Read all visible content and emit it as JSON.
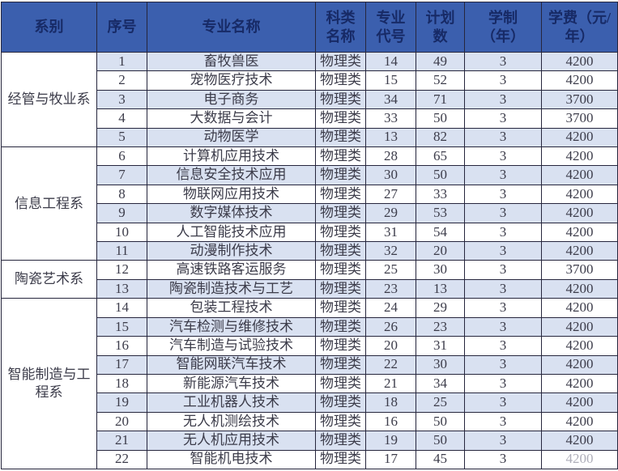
{
  "table": {
    "headers": [
      "系别",
      "序号",
      "专业名称",
      "科类\n名称",
      "专业\n代号",
      "计划\n数",
      "学制\n（年）",
      "学费（元/\n年）"
    ],
    "departments": [
      {
        "name": "经管与牧业系",
        "rowspan": 5
      },
      {
        "name": "信息工程系",
        "rowspan": 6
      },
      {
        "name": "陶瓷艺术系",
        "rowspan": 2
      },
      {
        "name": "智能制造与工程系",
        "rowspan": 9
      }
    ],
    "rows": [
      {
        "no": "1",
        "major": "畜牧兽医",
        "category": "物理类",
        "code": "14",
        "plan": "49",
        "years": "3",
        "fee": "4200"
      },
      {
        "no": "2",
        "major": "宠物医疗技术",
        "category": "物理类",
        "code": "15",
        "plan": "52",
        "years": "3",
        "fee": "4200"
      },
      {
        "no": "3",
        "major": "电子商务",
        "category": "物理类",
        "code": "34",
        "plan": "71",
        "years": "3",
        "fee": "3700"
      },
      {
        "no": "4",
        "major": "大数据与会计",
        "category": "物理类",
        "code": "33",
        "plan": "50",
        "years": "3",
        "fee": "3700"
      },
      {
        "no": "5",
        "major": "动物医学",
        "category": "物理类",
        "code": "13",
        "plan": "82",
        "years": "3",
        "fee": "4200"
      },
      {
        "no": "6",
        "major": "计算机应用技术",
        "category": "物理类",
        "code": "28",
        "plan": "65",
        "years": "3",
        "fee": "4200"
      },
      {
        "no": "7",
        "major": "信息安全技术应用",
        "category": "物理类",
        "code": "30",
        "plan": "50",
        "years": "3",
        "fee": "4200"
      },
      {
        "no": "8",
        "major": "物联网应用技术",
        "category": "物理类",
        "code": "27",
        "plan": "33",
        "years": "3",
        "fee": "4200"
      },
      {
        "no": "9",
        "major": "数字媒体技术",
        "category": "物理类",
        "code": "29",
        "plan": "53",
        "years": "3",
        "fee": "4200"
      },
      {
        "no": "10",
        "major": "人工智能技术应用",
        "category": "物理类",
        "code": "31",
        "plan": "54",
        "years": "3",
        "fee": "4200"
      },
      {
        "no": "11",
        "major": "动漫制作技术",
        "category": "物理类",
        "code": "32",
        "plan": "20",
        "years": "3",
        "fee": "4200"
      },
      {
        "no": "12",
        "major": "高速铁路客运服务",
        "category": "物理类",
        "code": "25",
        "plan": "30",
        "years": "3",
        "fee": "3700"
      },
      {
        "no": "13",
        "major": "陶瓷制造技术与工艺",
        "category": "物理类",
        "code": "23",
        "plan": "13",
        "years": "3",
        "fee": "4200"
      },
      {
        "no": "14",
        "major": "包装工程技术",
        "category": "物理类",
        "code": "24",
        "plan": "29",
        "years": "3",
        "fee": "4200"
      },
      {
        "no": "15",
        "major": "汽车检测与维修技术",
        "category": "物理类",
        "code": "26",
        "plan": "23",
        "years": "3",
        "fee": "4200"
      },
      {
        "no": "16",
        "major": "汽车制造与试验技术",
        "category": "物理类",
        "code": "20",
        "plan": "31",
        "years": "3",
        "fee": "4200"
      },
      {
        "no": "17",
        "major": "智能网联汽车技术",
        "category": "物理类",
        "code": "22",
        "plan": "30",
        "years": "3",
        "fee": "4200"
      },
      {
        "no": "18",
        "major": "新能源汽车技术",
        "category": "物理类",
        "code": "21",
        "plan": "34",
        "years": "3",
        "fee": "4200"
      },
      {
        "no": "19",
        "major": "工业机器人技术",
        "category": "物理类",
        "code": "18",
        "plan": "25",
        "years": "3",
        "fee": "4200"
      },
      {
        "no": "20",
        "major": "无人机测绘技术",
        "category": "物理类",
        "code": "16",
        "plan": "50",
        "years": "3",
        "fee": "4200"
      },
      {
        "no": "21",
        "major": "无人机应用技术",
        "category": "物理类",
        "code": "19",
        "plan": "50",
        "years": "3",
        "fee": "4200"
      },
      {
        "no": "22",
        "major": "智能机电技术",
        "category": "物理类",
        "code": "17",
        "plan": "45",
        "years": "3",
        "fee": "4200",
        "fee_faded": true
      }
    ]
  },
  "colors": {
    "header_bg": "#3b5fae",
    "header_text": "#172a66",
    "row_alt_bg": "#d9e1f1",
    "row_plain_bg": "#ffffff",
    "grid_line": "#26263d",
    "body_text": "#3c3c4a"
  }
}
